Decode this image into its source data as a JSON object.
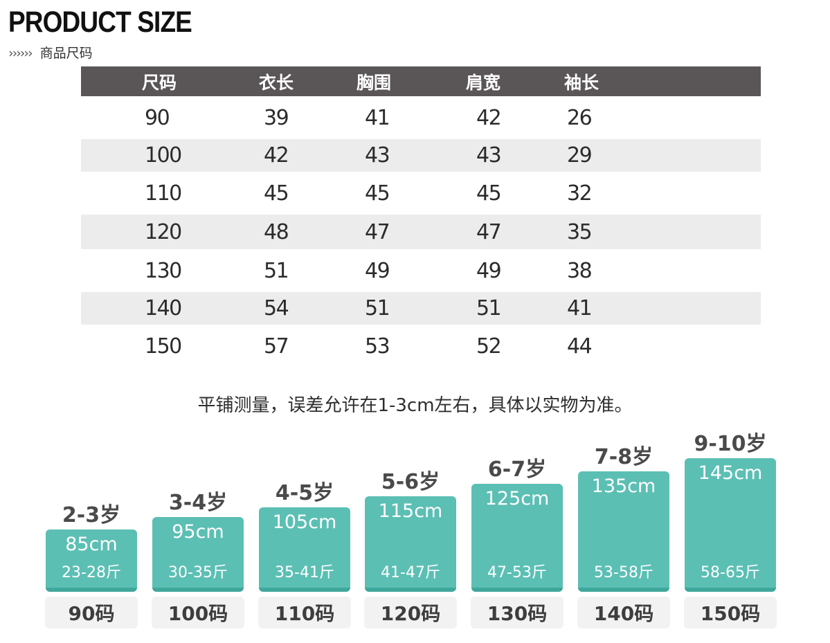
{
  "title": "PRODUCT SIZE",
  "subtitle": {
    "arrows": "››››››",
    "text": "商品尺码"
  },
  "table": {
    "headers": [
      "尺码",
      "衣长",
      "胸围",
      "肩宽",
      "袖长"
    ],
    "rows": [
      [
        "90",
        "39",
        "41",
        "42",
        "26"
      ],
      [
        "100",
        "42",
        "43",
        "43",
        "29"
      ],
      [
        "110",
        "45",
        "45",
        "45",
        "32"
      ],
      [
        "120",
        "48",
        "47",
        "47",
        "35"
      ],
      [
        "130",
        "51",
        "49",
        "49",
        "38"
      ],
      [
        "140",
        "54",
        "51",
        "51",
        "41"
      ],
      [
        "150",
        "57",
        "53",
        "52",
        "44"
      ]
    ]
  },
  "note": "平铺测量，误差允许在1-3cm左右，具体以实物为准。",
  "size_guide": [
    {
      "age": "2-3岁",
      "height": "85cm",
      "weight": "23-28斤",
      "size": "90码"
    },
    {
      "age": "3-4岁",
      "height": "95cm",
      "weight": "30-35斤",
      "size": "100码"
    },
    {
      "age": "4-5岁",
      "height": "105cm",
      "weight": "35-41斤",
      "size": "110码"
    },
    {
      "age": "5-6岁",
      "height": "115cm",
      "weight": "41-47斤",
      "size": "120码"
    },
    {
      "age": "6-7岁",
      "height": "125cm",
      "weight": "47-53斤",
      "size": "130码"
    },
    {
      "age": "7-8岁",
      "height": "135cm",
      "weight": "53-58斤",
      "size": "140码"
    },
    {
      "age": "9-10岁",
      "height": "145cm",
      "weight": "58-65斤",
      "size": "150码"
    }
  ],
  "colors": {
    "header_bg": "#5a5556",
    "bar": "#5cbfb4",
    "row_shade": "#ececec"
  }
}
